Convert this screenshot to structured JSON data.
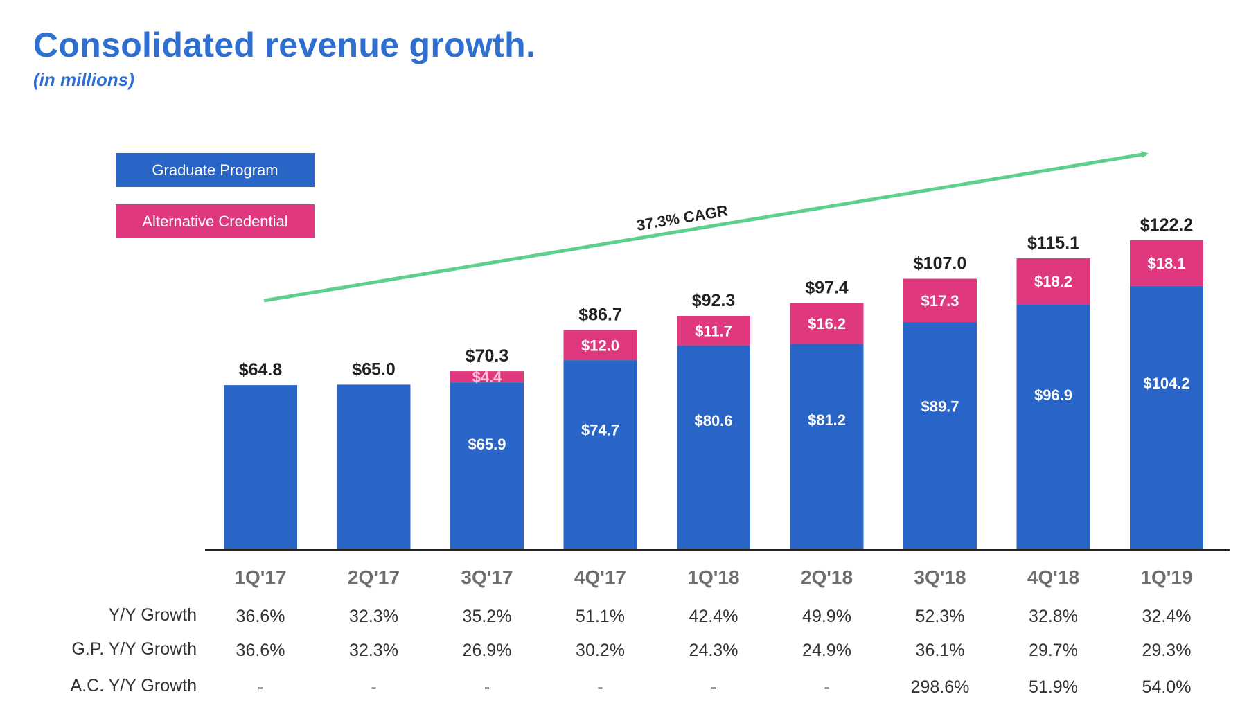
{
  "title": "Consolidated revenue growth.",
  "subtitle": "(in millions)",
  "colors": {
    "graduate_program": "#2965c6",
    "alternative_credential": "#e0387e",
    "cagr_arrow": "#5fcf8e",
    "title": "#2e6fd0"
  },
  "chart_data": {
    "type": "bar",
    "stacked": true,
    "categories": [
      "1Q'17",
      "2Q'17",
      "3Q'17",
      "4Q'17",
      "1Q'18",
      "2Q'18",
      "3Q'18",
      "4Q'18",
      "1Q'19"
    ],
    "series": [
      {
        "name": "Graduate Program",
        "values": [
          64.8,
          65.0,
          65.9,
          74.7,
          80.6,
          81.2,
          89.7,
          96.9,
          104.2
        ],
        "labels": [
          "",
          "",
          "$65.9",
          "$74.7",
          "$80.6",
          "$81.2",
          "$89.7",
          "$96.9",
          "$104.2"
        ]
      },
      {
        "name": "Alternative Credential",
        "values": [
          0,
          0,
          4.4,
          12.0,
          11.7,
          16.2,
          17.3,
          18.2,
          18.1
        ],
        "labels": [
          "",
          "",
          "$4.4",
          "$12.0",
          "$11.7",
          "$16.2",
          "$17.3",
          "$18.2",
          "$18.1"
        ]
      }
    ],
    "totals": [
      64.8,
      65.0,
      70.3,
      86.7,
      92.3,
      97.4,
      107.0,
      115.1,
      122.2
    ],
    "total_labels": [
      "$64.8",
      "$65.0",
      "$70.3",
      "$86.7",
      "$92.3",
      "$97.4",
      "$107.0",
      "$115.1",
      "$122.2"
    ],
    "legend_position": "top-left",
    "annotation": "37.3% CAGR",
    "table": {
      "rows": [
        {
          "label": "Y/Y Growth",
          "values": [
            "36.6%",
            "32.3%",
            "35.2%",
            "51.1%",
            "42.4%",
            "49.9%",
            "52.3%",
            "32.8%",
            "32.4%"
          ]
        },
        {
          "label": "G.P. Y/Y Growth",
          "values": [
            "36.6%",
            "32.3%",
            "26.9%",
            "30.2%",
            "24.3%",
            "24.9%",
            "36.1%",
            "29.7%",
            "29.3%"
          ]
        },
        {
          "label": "A.C. Y/Y Growth",
          "values": [
            "-",
            "-",
            "-",
            "-",
            "-",
            "-",
            "298.6%",
            "51.9%",
            "54.0%"
          ]
        }
      ]
    }
  }
}
